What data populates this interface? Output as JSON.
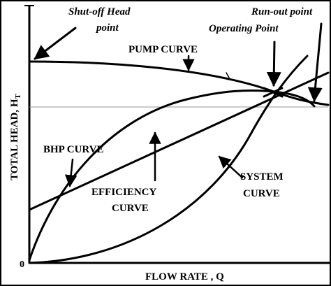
{
  "labels": {
    "shutoff_line1": "Shut-off Head",
    "shutoff_line2": "point",
    "runout": "Run-out point",
    "operating": "Operating Point",
    "pump_curve": "PUMP CURVE",
    "bhp_curve": "BHP CURVE",
    "efficiency_line1": "EFFICIENCY",
    "efficiency_line2": "CURVE",
    "system_line1": "SYSTEM",
    "system_line2": "CURVE",
    "y_axis": "TOTAL HEAD, H",
    "y_axis_sub": "T",
    "x_axis": "FLOW RATE , Q",
    "origin": "0"
  }
}
